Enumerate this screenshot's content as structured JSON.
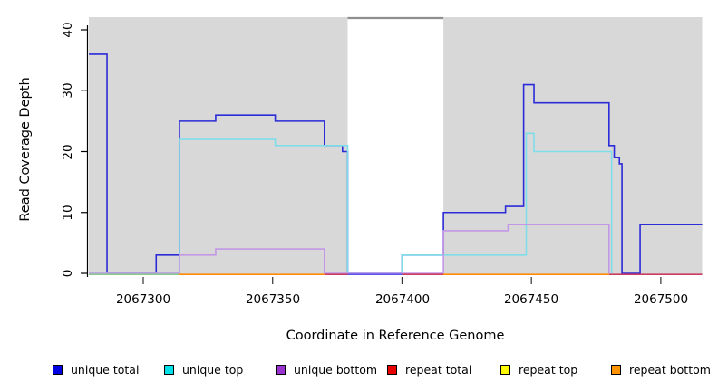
{
  "chart_data": {
    "type": "line",
    "subtype": "step-coverage-plot",
    "xlabel": "Coordinate in Reference Genome",
    "ylabel": "Read Coverage Depth",
    "xlim": [
      2067279,
      2067516
    ],
    "ylim": [
      0,
      41
    ],
    "grid": false,
    "legend_position": "bottom",
    "xticks": [
      2067300,
      2067350,
      2067400,
      2067450,
      2067500
    ],
    "xtick_labels": [
      "2067300",
      "2067350",
      "2067400",
      "2067450",
      "2067500"
    ],
    "yticks": [
      0,
      10,
      20,
      30,
      40
    ],
    "ytick_labels": [
      "0",
      "10",
      "20",
      "30",
      "40"
    ],
    "shaded_regions": [
      {
        "from": 2067279,
        "to": 2067379,
        "color": "#d8d8d8"
      },
      {
        "from": 2067416,
        "to": 2067516,
        "color": "#d8d8d8"
      }
    ],
    "gap_top_border": {
      "from": 2067379,
      "to": 2067416,
      "color": "#8f8f8f"
    },
    "series": [
      {
        "name": "unique total",
        "legend_color": "#0000e0",
        "line_color": "#2b2bd8",
        "points": [
          [
            2067279,
            36
          ],
          [
            2067286,
            0
          ],
          [
            2067305,
            3
          ],
          [
            2067314,
            25
          ],
          [
            2067328,
            26
          ],
          [
            2067351,
            25
          ],
          [
            2067370,
            21
          ],
          [
            2067377,
            20
          ],
          [
            2067379,
            0
          ],
          [
            2067400,
            3
          ],
          [
            2067416,
            10
          ],
          [
            2067440,
            11
          ],
          [
            2067447,
            31
          ],
          [
            2067451,
            28
          ],
          [
            2067480,
            21
          ],
          [
            2067482,
            19
          ],
          [
            2067484,
            18
          ],
          [
            2067485,
            0
          ],
          [
            2067492,
            8
          ],
          [
            2067516,
            8
          ]
        ]
      },
      {
        "name": "unique top",
        "legend_color": "#00e0e6",
        "line_color": "#7fdde9",
        "points": [
          [
            2067279,
            0
          ],
          [
            2067314,
            22
          ],
          [
            2067351,
            21
          ],
          [
            2067379,
            0
          ],
          [
            2067400,
            3
          ],
          [
            2067448,
            23
          ],
          [
            2067451,
            20
          ],
          [
            2067481,
            0
          ]
        ]
      },
      {
        "name": "unique bottom",
        "legend_color": "#9a32cd",
        "line_color": "#c397e6",
        "points": [
          [
            2067279,
            0
          ],
          [
            2067314,
            3
          ],
          [
            2067328,
            4
          ],
          [
            2067370,
            0
          ],
          [
            2067416,
            7
          ],
          [
            2067441,
            8
          ],
          [
            2067480,
            0
          ]
        ]
      },
      {
        "name": "repeat total",
        "legend_color": "#e60000",
        "line_color": "#cb3d60",
        "points": [
          [
            2067370,
            0
          ],
          [
            2067516,
            0
          ]
        ]
      },
      {
        "name": "repeat top",
        "legend_color": "#ffff00",
        "line_color": "#8cc98f",
        "points": [
          [
            2067279,
            0
          ],
          [
            2067314,
            0
          ]
        ]
      },
      {
        "name": "repeat bottom",
        "legend_color": "#ff9400",
        "line_color": "#ff8c00",
        "points": [
          [
            2067314,
            0
          ],
          [
            2067480,
            0
          ]
        ]
      }
    ],
    "baseline_segments": [
      {
        "from": 2067279,
        "to": 2067314,
        "color": "#8cc98f"
      },
      {
        "from": 2067314,
        "to": 2067370,
        "color": "#ff8c00"
      },
      {
        "from": 2067370,
        "to": 2067379,
        "color": "#cb3d60"
      },
      {
        "from": 2067379,
        "to": 2067400,
        "color": "#5f55e8"
      },
      {
        "from": 2067400,
        "to": 2067416,
        "color": "#cb3d60"
      },
      {
        "from": 2067416,
        "to": 2067480,
        "color": "#ff8c00"
      },
      {
        "from": 2067480,
        "to": 2067516,
        "color": "#cb3d60"
      }
    ]
  }
}
